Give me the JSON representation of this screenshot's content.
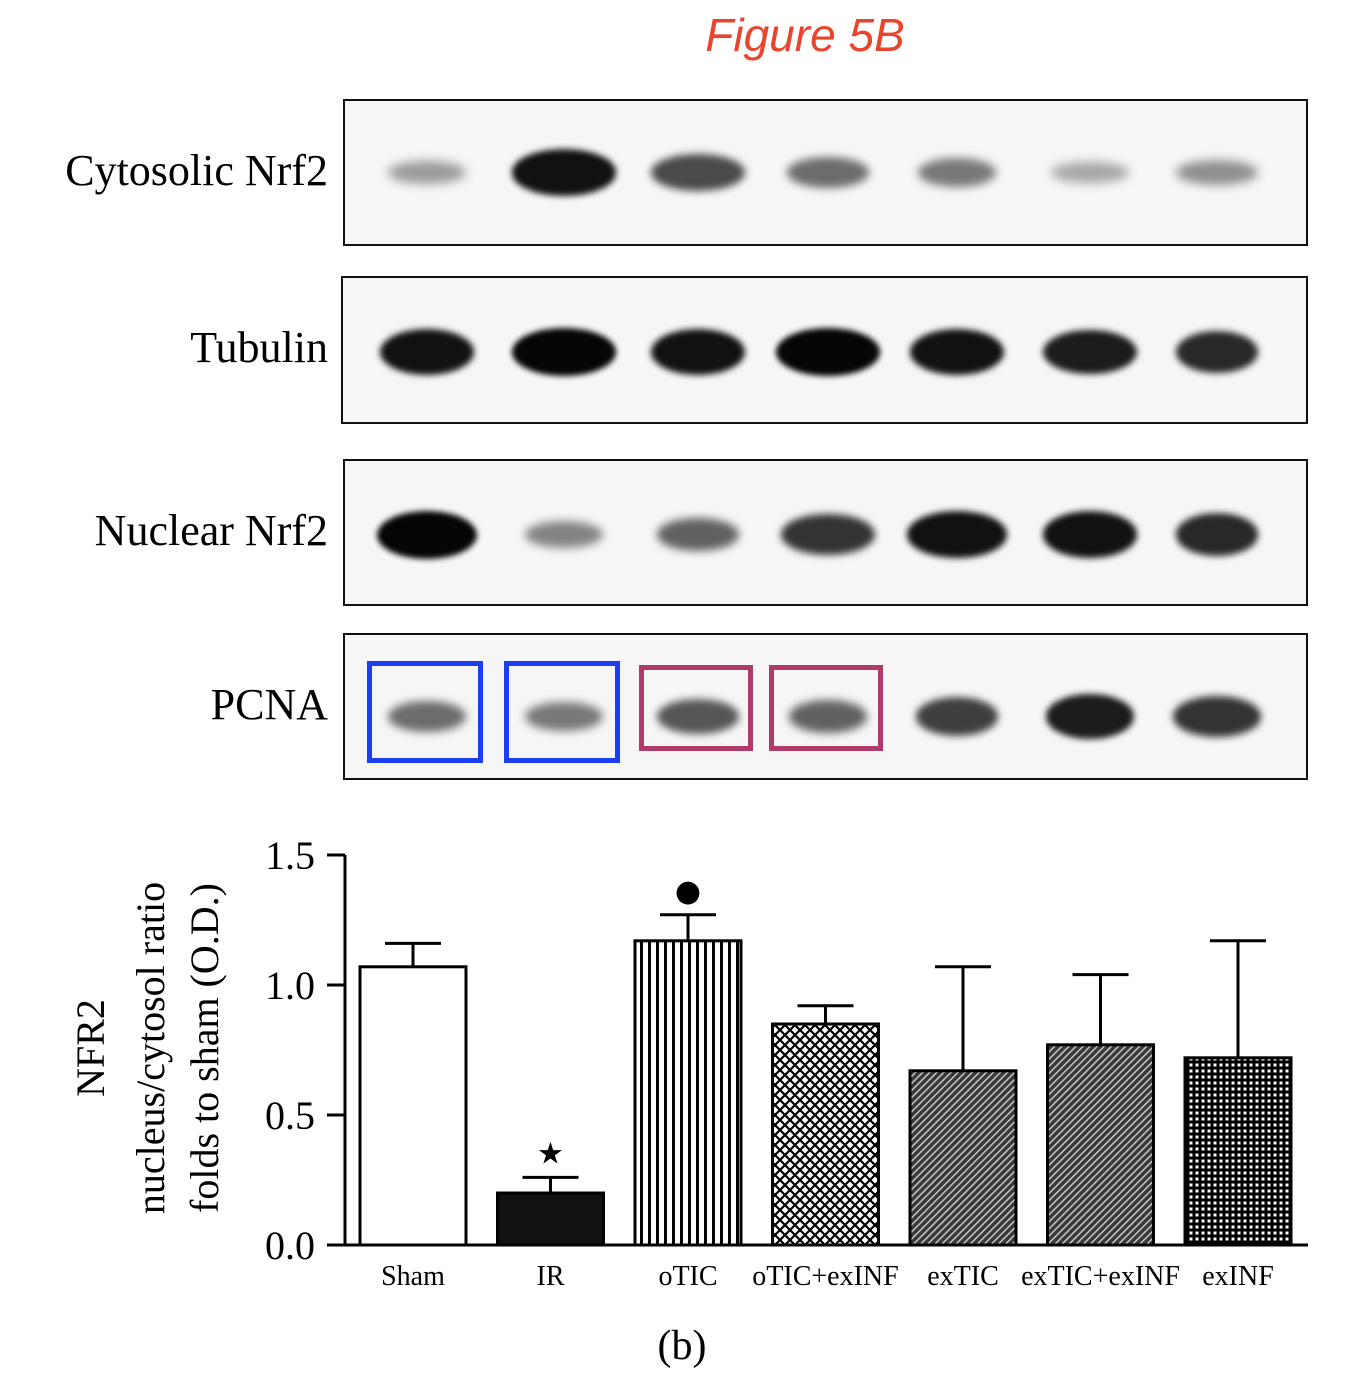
{
  "figure_title": "Figure 5B",
  "panel_label": "(b)",
  "blots": [
    {
      "label": "Cytosolic Nrf2",
      "band_intensity": [
        0.35,
        0.95,
        0.7,
        0.55,
        0.5,
        0.3,
        0.4
      ],
      "band_width": [
        0.7,
        0.95,
        0.85,
        0.75,
        0.7,
        0.7,
        0.75
      ]
    },
    {
      "label": "Tubulin",
      "band_intensity": [
        0.95,
        1.0,
        0.95,
        1.0,
        0.95,
        0.9,
        0.85
      ],
      "band_width": [
        0.85,
        0.95,
        0.85,
        0.95,
        0.85,
        0.85,
        0.75
      ]
    },
    {
      "label": "Nuclear Nrf2",
      "band_intensity": [
        1.0,
        0.45,
        0.6,
        0.8,
        0.95,
        0.95,
        0.85
      ],
      "band_width": [
        0.9,
        0.7,
        0.75,
        0.85,
        0.9,
        0.85,
        0.75
      ]
    },
    {
      "label": "PCNA",
      "band_intensity": [
        0.55,
        0.5,
        0.65,
        0.6,
        0.75,
        0.9,
        0.8
      ],
      "band_width": [
        0.7,
        0.7,
        0.75,
        0.7,
        0.75,
        0.8,
        0.8
      ]
    }
  ],
  "highlight_colors": {
    "blue": "#1a3ef0",
    "magenta": "#b03a6a"
  },
  "highlights": [
    {
      "lane": 0,
      "color": "blue"
    },
    {
      "lane": 1,
      "color": "blue"
    },
    {
      "lane": 2,
      "color": "magenta"
    },
    {
      "lane": 3,
      "color": "magenta"
    }
  ],
  "chart_data": {
    "type": "bar",
    "categories": [
      "Sham",
      "IR",
      "oTIC",
      "oTIC+exINF",
      "exTIC",
      "exTIC+exINF",
      "exINF"
    ],
    "values": [
      1.07,
      0.2,
      1.17,
      0.85,
      0.67,
      0.77,
      0.72
    ],
    "errors": [
      0.09,
      0.06,
      0.1,
      0.07,
      0.4,
      0.27,
      0.45
    ],
    "fills": [
      "white",
      "solid",
      "vlines",
      "crosshatch",
      "diag-dense",
      "diag-dense",
      "grid"
    ],
    "markers": [
      "",
      "★",
      "●",
      "",
      "",
      "",
      ""
    ],
    "ylabel_lines": [
      "NFR2",
      "nucleus/cytosol ratio",
      "folds to sham (O.D.)"
    ],
    "ylim": [
      0,
      1.5
    ],
    "yticks": [
      "0.0",
      "0.5",
      "1.0",
      "1.5"
    ],
    "ytick_values": [
      0,
      0.5,
      1.0,
      1.5
    ],
    "grid": false,
    "legend": "none"
  }
}
